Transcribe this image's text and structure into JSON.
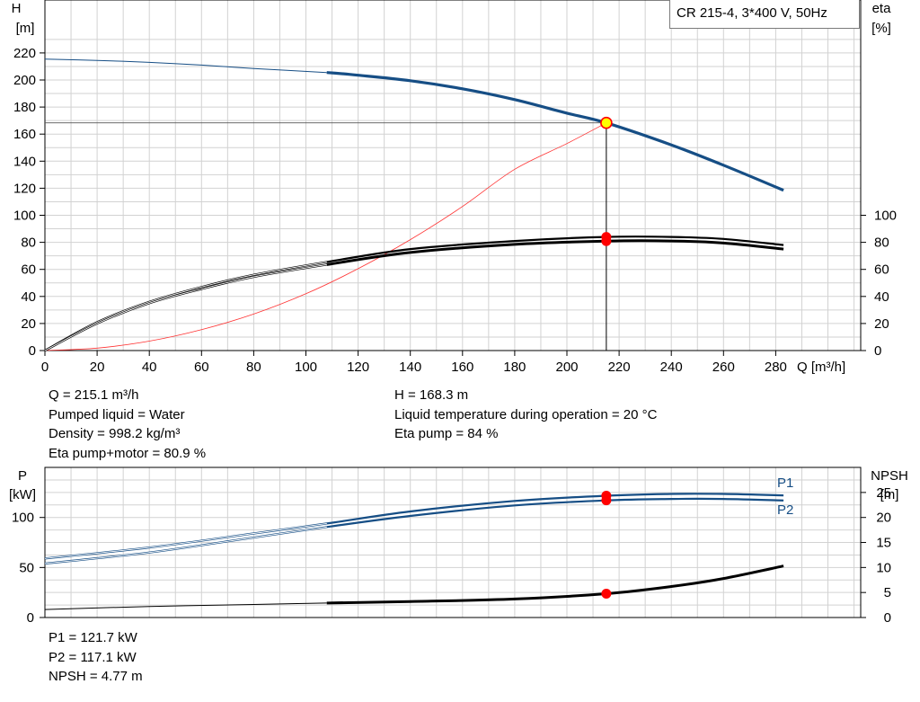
{
  "model": "CR 215-4, 3*400 V, 50Hz",
  "colors": {
    "head": "#164e85",
    "power": "#164e85",
    "efficiency": "#000000",
    "npsh": "#000000",
    "system_curve": "#ff3333",
    "duty_marker": "#ff0000",
    "duty_point_fill": "#ffff00",
    "grid": "#d2d2d2"
  },
  "info_top": {
    "left": [
      "Q = 215.1 m³/h",
      "Pumped liquid = Water",
      "Density = 998.2 kg/m³",
      "Eta pump+motor = 80.9 %"
    ],
    "right": [
      "H = 168.3 m",
      "Liquid temperature during operation = 20 °C",
      "Eta pump = 84 %"
    ]
  },
  "info_bottom": [
    "P1 = 121.7 kW",
    "P2 = 117.1 kW",
    "NPSH = 4.77 m"
  ],
  "chart_data": [
    {
      "type": "line",
      "panel": "head-efficiency",
      "xlabel": "Q [m³/h]",
      "xlim": [
        0,
        290
      ],
      "xticks": [
        0,
        20,
        40,
        60,
        80,
        100,
        120,
        140,
        160,
        180,
        200,
        220,
        240,
        260,
        280
      ],
      "ylabel_left": [
        "H",
        "[m]"
      ],
      "ylim_left": [
        0,
        230
      ],
      "yticks_left": [
        0,
        20,
        40,
        60,
        80,
        100,
        120,
        140,
        160,
        180,
        200,
        220
      ],
      "ylabel_right": [
        "eta",
        "[%]"
      ],
      "ylim_right": [
        0,
        230
      ],
      "yticks_right": [
        0,
        20,
        40,
        60,
        80,
        100
      ],
      "grid": true,
      "duty_point": {
        "q": 215.1,
        "h": 168.3,
        "eta_pump": 84,
        "eta_pump_motor": 80.9
      },
      "series": [
        {
          "key": "head",
          "axis": "left",
          "x": [
            0,
            20,
            40,
            60,
            80,
            108,
            120,
            140,
            160,
            180,
            200,
            215.1,
            240,
            260,
            283
          ],
          "y": [
            215.5,
            214.5,
            213,
            211,
            208.5,
            205.5,
            203.5,
            199.5,
            193.5,
            185.5,
            175.5,
            168.3,
            152,
            137,
            118.5
          ]
        },
        {
          "key": "eta_pump",
          "axis": "right",
          "x": [
            0,
            20,
            40,
            60,
            80,
            108,
            140,
            180,
            215.1,
            240,
            260,
            283
          ],
          "y": [
            0,
            21,
            36,
            47,
            56,
            65.5,
            75,
            81,
            84,
            84,
            82.5,
            78
          ]
        },
        {
          "key": "eta_total",
          "axis": "right",
          "x": [
            0,
            20,
            40,
            60,
            80,
            108,
            140,
            180,
            215.1,
            240,
            260,
            283
          ],
          "y": [
            0,
            20,
            35,
            45.5,
            54.5,
            63.5,
            72.5,
            78.5,
            80.9,
            81,
            79.5,
            75
          ]
        },
        {
          "key": "system",
          "axis": "left",
          "x": [
            0,
            20,
            40,
            60,
            80,
            100,
            120,
            140,
            160,
            180,
            200,
            215.1
          ],
          "y": [
            0,
            1.8,
            7,
            15.5,
            27,
            42,
            60.5,
            82,
            106.5,
            134,
            153,
            168.3
          ]
        }
      ]
    },
    {
      "type": "line",
      "panel": "power-npsh",
      "xlim": [
        0,
        290
      ],
      "ylabel_left": [
        "P",
        "[kW]"
      ],
      "ylim_left": [
        0,
        150
      ],
      "yticks_left": [
        0,
        50,
        100
      ],
      "ylabel_right": [
        "NPSH",
        "[m]"
      ],
      "ylim_right": [
        0,
        30
      ],
      "yticks_right": [
        0,
        5,
        10,
        15,
        20,
        25
      ],
      "grid": true,
      "duty_point": {
        "q": 215.1,
        "p1": 121.7,
        "p2": 117.1,
        "npsh": 4.77
      },
      "series": [
        {
          "key": "P1",
          "name": "P1",
          "axis": "left",
          "x": [
            0,
            40,
            80,
            108,
            140,
            180,
            215.1,
            240,
            260,
            283
          ],
          "y": [
            59,
            70,
            84,
            94,
            106,
            116.5,
            121.7,
            123.5,
            123.5,
            122
          ]
        },
        {
          "key": "P2",
          "name": "P2",
          "axis": "left",
          "x": [
            0,
            40,
            80,
            108,
            140,
            180,
            215.1,
            240,
            260,
            283
          ],
          "y": [
            54,
            65,
            80,
            90.5,
            101.5,
            112,
            117.1,
            118.5,
            118.5,
            117
          ]
        },
        {
          "key": "NPSH",
          "axis": "right",
          "x": [
            0,
            40,
            80,
            108,
            140,
            180,
            215.1,
            240,
            260,
            283
          ],
          "y": [
            1.6,
            2.2,
            2.6,
            2.9,
            3.2,
            3.7,
            4.77,
            6.2,
            7.8,
            10.3
          ]
        }
      ]
    }
  ]
}
